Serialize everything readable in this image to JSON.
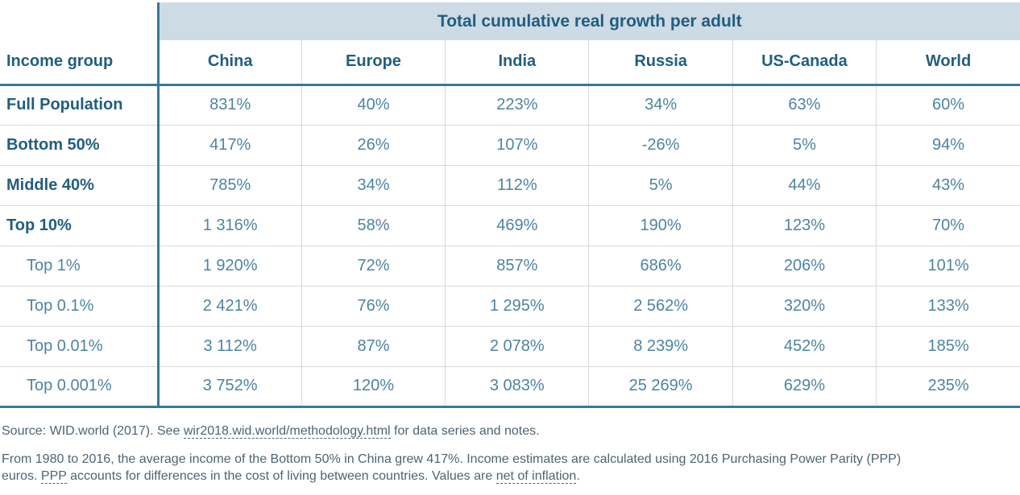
{
  "chart_data": {
    "type": "table",
    "title": "Total cumulative real growth per adult",
    "row_header": "Income group",
    "columns": [
      "China",
      "Europe",
      "India",
      "Russia",
      "US-Canada",
      "World"
    ],
    "rows": [
      {
        "label": "Full Population",
        "bold": true,
        "values": [
          "831%",
          "40%",
          "223%",
          "34%",
          "63%",
          "60%"
        ]
      },
      {
        "label": "Bottom 50%",
        "bold": true,
        "values": [
          "417%",
          "26%",
          "107%",
          "-26%",
          "5%",
          "94%"
        ]
      },
      {
        "label": "Middle 40%",
        "bold": true,
        "values": [
          "785%",
          "34%",
          "112%",
          "5%",
          "44%",
          "43%"
        ]
      },
      {
        "label": "Top 10%",
        "bold": true,
        "values": [
          "1 316%",
          "58%",
          "469%",
          "190%",
          "123%",
          "70%"
        ]
      },
      {
        "label": "Top 1%",
        "bold": false,
        "values": [
          "1 920%",
          "72%",
          "857%",
          "686%",
          "206%",
          "101%"
        ]
      },
      {
        "label": "Top 0.1%",
        "bold": false,
        "values": [
          "2 421%",
          "76%",
          "1 295%",
          "2 562%",
          "320%",
          "133%"
        ]
      },
      {
        "label": "Top 0.01%",
        "bold": false,
        "values": [
          "3 112%",
          "87%",
          "2 078%",
          "8 239%",
          "452%",
          "185%"
        ]
      },
      {
        "label": "Top 0.001%",
        "bold": false,
        "values": [
          "3 752%",
          "120%",
          "3 083%",
          "25 269%",
          "629%",
          "235%"
        ]
      }
    ]
  },
  "footnotes": {
    "source_prefix": "Source: WID.world (2017). See ",
    "source_link": "wir2018.wid.world/methodology.html",
    "source_suffix": " for data series and notes.",
    "note_line1": "From 1980 to 2016, the average income of the Bottom 50% in China grew 417%. Income estimates are calculated using 2016 Purchasing Power Parity (PPP)",
    "note_line2_start": "euros. ",
    "note_glossary_ppp": "PPP",
    "note_line2_mid": " accounts for differences in the cost of living between countries. Values are ",
    "note_glossary_inflation": "net of inflation",
    "note_line2_end": "."
  },
  "colors": {
    "header_band_bg": "#cddbe4",
    "accent_line": "#37789b",
    "header_text": "#215e80",
    "value_text": "#4d84a1",
    "grid_line": "#d9d9d9",
    "footnote_text": "#4e6472"
  }
}
